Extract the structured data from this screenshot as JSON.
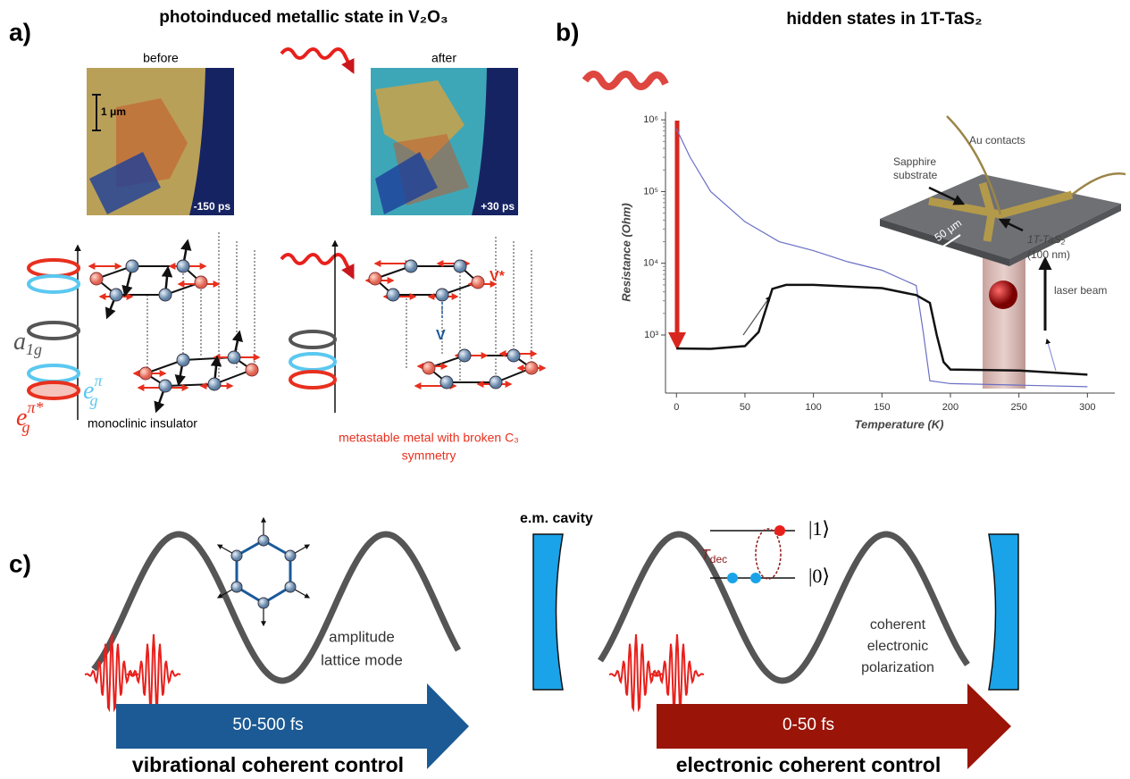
{
  "panel_a": {
    "label": "a)",
    "title": "photoinduced metallic state in V₂O₃",
    "before": "before",
    "after": "after",
    "scale_bar": "1 μm",
    "time_before": "-150 ps",
    "time_after": "+30 ps",
    "orbitals": [
      {
        "base": "a",
        "sub": "1g"
      },
      {
        "base": "e",
        "sup": "π",
        "sub": "g"
      },
      {
        "base": "e",
        "sup": "π*",
        "sub": "g"
      }
    ],
    "v_star": "V*",
    "v": "V",
    "caption_left": "monoclinic insulator",
    "caption_right_1": "metastable metal with broken C₃",
    "caption_right_2": "symmetry"
  },
  "panel_b": {
    "label": "b)",
    "title": "hidden states in 1T-TaS₂",
    "chart": {
      "type": "line",
      "ylabel": "Resistance (Ohm)",
      "xlabel": "Temperature (K)",
      "log_y": true,
      "xlim": [
        -8,
        320
      ],
      "ylim": [
        155,
        1300000
      ],
      "xticks": [
        0,
        50,
        100,
        150,
        200,
        250,
        300
      ],
      "yticks": [
        {
          "value": 1000,
          "label": "10³"
        },
        {
          "value": 10000,
          "label": "10⁴"
        },
        {
          "value": 100000,
          "label": "10⁵"
        },
        {
          "value": 1000000,
          "label": "10⁶"
        }
      ],
      "series": [
        {
          "color": "#6a6fc4",
          "x": [
            0,
            10,
            25,
            50,
            75,
            100,
            125,
            150,
            175,
            180,
            185,
            200,
            250,
            300
          ],
          "values": [
            750000,
            300000,
            100000,
            38000,
            20000,
            15000,
            10500,
            8000,
            4900,
            1150,
            230,
            210,
            200,
            190
          ]
        },
        {
          "color": "#111111",
          "x": [
            0,
            25,
            50,
            60,
            70,
            80,
            100,
            150,
            175,
            185,
            190,
            195,
            200,
            250,
            300
          ],
          "values": [
            650,
            640,
            700,
            1100,
            4400,
            5000,
            5000,
            4500,
            3600,
            2800,
            1000,
            420,
            330,
            320,
            280
          ]
        }
      ]
    },
    "inset": {
      "au_contacts": "Au contacts",
      "substrate_1": "Sapphire",
      "substrate_2": "substrate",
      "sample": "1T-TaS₂",
      "thickness": "(100 nm)",
      "scale": "50 μm",
      "laser": "laser beam"
    }
  },
  "panel_c": {
    "label": "c)",
    "cavity": "e.m. cavity",
    "ket1": "|1⟩",
    "ket0": "|0⟩",
    "t_dec": "T",
    "t_dec_sub": "dec",
    "left_mode_1": "amplitude",
    "left_mode_2": "lattice mode",
    "right_mode_1": "coherent",
    "right_mode_2": "electronic",
    "right_mode_3": "polarization",
    "left_time": "50-500 fs",
    "left_control": "vibrational coherent control",
    "right_time": "0-50 fs",
    "right_control": "electronic coherent control"
  }
}
